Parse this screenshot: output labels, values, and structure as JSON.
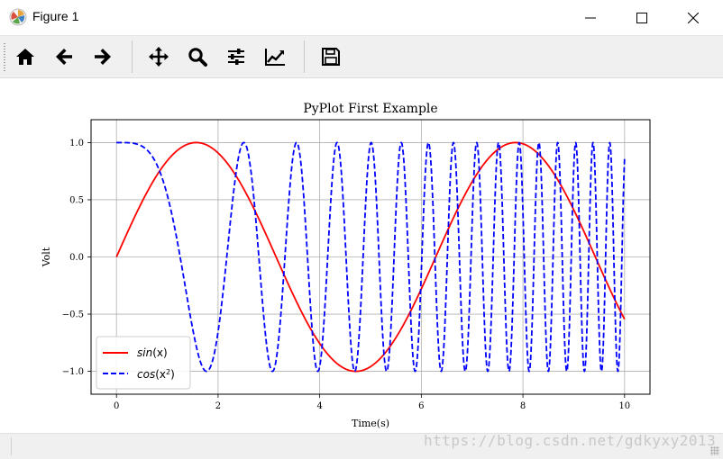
{
  "window": {
    "title": "Figure 1",
    "icon": "matplotlib-logo-icon",
    "controls": [
      "minimize-icon",
      "maximize-icon",
      "close-icon"
    ]
  },
  "toolbar": {
    "buttons": [
      {
        "name": "home",
        "icon": "home-icon"
      },
      {
        "name": "back",
        "icon": "arrow-left-icon"
      },
      {
        "name": "forward",
        "icon": "arrow-right-icon"
      },
      {
        "name": "pan",
        "icon": "move-icon"
      },
      {
        "name": "zoom",
        "icon": "magnifier-icon"
      },
      {
        "name": "subplots",
        "icon": "sliders-icon"
      },
      {
        "name": "edit-axes",
        "icon": "line-chart-icon"
      },
      {
        "name": "save",
        "icon": "floppy-disk-icon"
      }
    ]
  },
  "watermark": "https://blog.csdn.net/gdkyxy2013",
  "chart_data": {
    "type": "line",
    "title": "PyPlot First Example",
    "xlabel": "Time(s)",
    "ylabel": "Volt",
    "xlim": [
      -0.5,
      10.5
    ],
    "ylim": [
      -1.2,
      1.2
    ],
    "xticks": [
      0,
      2,
      4,
      6,
      8,
      10
    ],
    "xtick_labels": [
      "0",
      "2",
      "4",
      "6",
      "8",
      "10"
    ],
    "yticks": [
      -1.0,
      -0.5,
      0.0,
      0.5,
      1.0
    ],
    "ytick_labels": [
      "−1.0",
      "−0.5",
      "0.0",
      "0.5",
      "1.0"
    ],
    "grid": true,
    "legend_position": "lower-left",
    "x_range": [
      0,
      10
    ],
    "series": [
      {
        "name": "sin(x)",
        "label_base": "sin",
        "label_arg": "(x)",
        "function": "sin(x)",
        "color": "#ff0000",
        "style": "solid"
      },
      {
        "name": "cos(x^2)",
        "label_base": "cos",
        "label_arg": "(x",
        "label_sup": "2",
        "label_close": ")",
        "function": "cos(x^2)",
        "color": "#0000ff",
        "style": "dashed"
      }
    ]
  }
}
